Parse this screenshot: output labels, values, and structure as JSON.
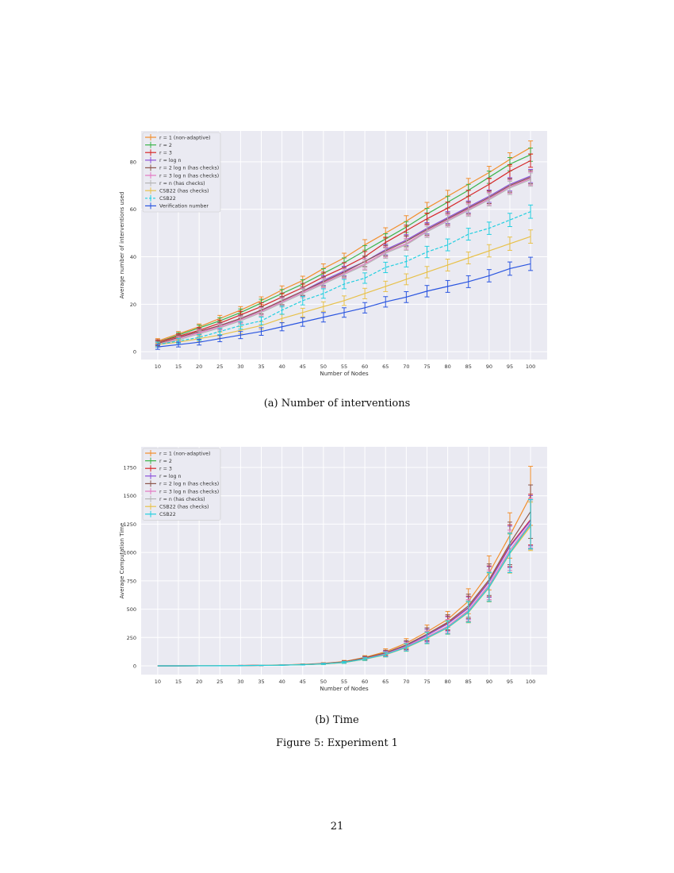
{
  "chart_data": [
    {
      "type": "line",
      "xlabel": "Number of Nodes",
      "ylabel": "Average number of interventions used",
      "x": [
        10,
        15,
        20,
        25,
        30,
        35,
        40,
        45,
        50,
        55,
        60,
        65,
        70,
        75,
        80,
        85,
        90,
        95,
        100
      ],
      "xlim": [
        6,
        104
      ],
      "ylim": [
        -3.3,
        93
      ],
      "yticks": [
        0,
        20,
        40,
        60,
        80
      ],
      "grid": true,
      "legend": "top-left",
      "yerr": [
        1,
        1,
        1.2,
        1.3,
        1.5,
        1.6,
        1.7,
        1.8,
        2,
        2,
        2.2,
        2.2,
        2.3,
        2.4,
        2.5,
        2.5,
        2.6,
        2.8,
        2.8
      ],
      "series": [
        {
          "name": "r = 1 (non-adaptive)",
          "color": "#f28e2b",
          "dashed": false,
          "values": [
            4.5,
            7.5,
            10.5,
            14,
            17.5,
            21.5,
            26,
            30,
            35,
            39.5,
            45,
            50,
            55,
            60.5,
            65.5,
            70.5,
            75.5,
            81,
            86
          ]
        },
        {
          "name": "r = 2",
          "color": "#3cb44b",
          "dashed": false,
          "values": [
            4,
            7,
            10,
            13,
            16.5,
            20.5,
            24.5,
            28.5,
            33,
            37.5,
            42.5,
            47.5,
            52.5,
            58,
            63,
            68,
            73.5,
            79,
            83
          ]
        },
        {
          "name": "r = 3",
          "color": "#d62728",
          "dashed": false,
          "values": [
            4,
            6.5,
            9,
            12,
            15.5,
            19,
            23,
            27,
            31.5,
            35.5,
            40,
            46,
            51,
            56,
            60.5,
            65.5,
            70.5,
            76,
            80.5
          ]
        },
        {
          "name": "r = log n",
          "color": "#8a4fd8",
          "dashed": false,
          "values": [
            3.5,
            6,
            8.5,
            11,
            14,
            17.5,
            21.5,
            25.5,
            30,
            34,
            38,
            43,
            47,
            52,
            56.5,
            61,
            65.5,
            70.5,
            74
          ]
        },
        {
          "name": "r = 2 log n (has checks)",
          "color": "#8c564b",
          "dashed": false,
          "values": [
            3.5,
            6,
            8.5,
            11,
            14,
            17.5,
            21.5,
            25.5,
            29.5,
            33.5,
            38,
            42.5,
            46.5,
            51.5,
            56,
            60.5,
            65,
            70,
            73.5
          ]
        },
        {
          "name": "r = 3 log n (has checks)",
          "color": "#e377c2",
          "dashed": false,
          "values": [
            3,
            5.5,
            8,
            10.5,
            13.5,
            17,
            21,
            25,
            29,
            33,
            37,
            42,
            45.5,
            51,
            55.5,
            60,
            64.5,
            69.5,
            73
          ]
        },
        {
          "name": "r = n (has checks)",
          "color": "#b5b5b5",
          "dashed": false,
          "values": [
            3,
            5,
            7.5,
            10,
            13,
            16.5,
            20.5,
            24.5,
            28.5,
            32.5,
            36.5,
            41.5,
            45,
            50.5,
            55,
            59.5,
            64,
            69,
            72.5
          ]
        },
        {
          "name": "CSB22 (has checks)",
          "color": "#e8c14a",
          "dashed": false,
          "values": [
            3,
            4,
            5.5,
            7,
            9,
            11,
            14,
            16.5,
            19,
            21.5,
            24.5,
            27.5,
            30.5,
            33.5,
            36.5,
            39.5,
            42.5,
            45.5,
            48.5
          ]
        },
        {
          "name": "CSB22",
          "color": "#22cfe0",
          "dashed": true,
          "values": [
            3,
            4.5,
            6,
            8.5,
            11,
            13,
            17.5,
            21.5,
            24.5,
            28.5,
            31,
            35.5,
            38,
            42,
            45,
            49.5,
            52,
            55.5,
            59
          ]
        },
        {
          "name": "Verification number",
          "color": "#2a55e0",
          "dashed": false,
          "values": [
            2,
            3,
            4,
            5.5,
            7,
            8.5,
            10.5,
            12.5,
            14.5,
            16.5,
            18.5,
            21,
            23,
            25.5,
            27.5,
            29.5,
            32,
            35,
            37
          ]
        }
      ]
    },
    {
      "type": "line",
      "xlabel": "Number of Nodes",
      "ylabel": "Average Computation Time",
      "x": [
        10,
        15,
        20,
        25,
        30,
        35,
        40,
        45,
        50,
        55,
        60,
        65,
        70,
        75,
        80,
        85,
        90,
        95,
        100
      ],
      "xlim": [
        6,
        104
      ],
      "ylim": [
        -77,
        1932
      ],
      "yticks": [
        0,
        250,
        500,
        750,
        1000,
        1250,
        1500,
        1750
      ],
      "grid": true,
      "legend": "top-left",
      "yerr": [
        0,
        0,
        0,
        1,
        1,
        2,
        3,
        4,
        6,
        10,
        15,
        25,
        40,
        60,
        70,
        110,
        150,
        200,
        260
      ],
      "series": [
        {
          "name": "r = 1 (non-adaptive)",
          "color": "#f28e2b",
          "values": [
            0,
            0,
            1,
            2,
            3,
            5,
            8,
            13,
            22,
            38,
            75,
            125,
            200,
            300,
            410,
            570,
            820,
            1150,
            1500
          ]
        },
        {
          "name": "r = 2",
          "color": "#3cb44b",
          "values": [
            0,
            0,
            1,
            1,
            2,
            4,
            6,
            10,
            17,
            30,
            60,
            100,
            165,
            250,
            340,
            480,
            700,
            1000,
            1250
          ]
        },
        {
          "name": "r = 3",
          "color": "#d62728",
          "values": [
            0,
            0,
            1,
            2,
            3,
            4,
            7,
            11,
            19,
            33,
            66,
            110,
            180,
            270,
            375,
            515,
            745,
            1060,
            1290
          ]
        },
        {
          "name": "r = log n",
          "color": "#8a4fd8",
          "values": [
            0,
            0,
            1,
            2,
            3,
            4,
            7,
            11,
            19,
            33,
            66,
            110,
            180,
            270,
            370,
            510,
            740,
            1050,
            1280
          ]
        },
        {
          "name": "r = 2 log n (has checks)",
          "color": "#8c564b",
          "values": [
            0,
            0,
            1,
            2,
            3,
            5,
            7,
            12,
            20,
            35,
            70,
            115,
            185,
            280,
            385,
            530,
            760,
            1080,
            1360
          ]
        },
        {
          "name": "r = 3 log n (has checks)",
          "color": "#e377c2",
          "values": [
            0,
            0,
            1,
            1,
            2,
            4,
            6,
            10,
            18,
            31,
            62,
            105,
            170,
            255,
            350,
            490,
            715,
            1020,
            1260
          ]
        },
        {
          "name": "r = n (has checks)",
          "color": "#b5b5b5",
          "values": [
            0,
            0,
            1,
            1,
            2,
            4,
            6,
            10,
            17,
            30,
            60,
            100,
            165,
            248,
            340,
            478,
            700,
            1000,
            1240
          ]
        },
        {
          "name": "CSB22 (has checks)",
          "color": "#e8c14a",
          "values": [
            0,
            0,
            1,
            1,
            2,
            4,
            6,
            10,
            16,
            29,
            58,
            98,
            160,
            243,
            335,
            470,
            690,
            990,
            1230
          ]
        },
        {
          "name": "CSB22",
          "color": "#22cfe0",
          "values": [
            0,
            0,
            1,
            1,
            2,
            4,
            6,
            10,
            17,
            30,
            60,
            100,
            163,
            246,
            338,
            475,
            695,
            995,
            1250
          ]
        }
      ]
    }
  ],
  "captions": {
    "a": "(a) Number of interventions",
    "b": "(b) Time",
    "figure": "Figure 5: Experiment 1"
  },
  "page_number": "21"
}
